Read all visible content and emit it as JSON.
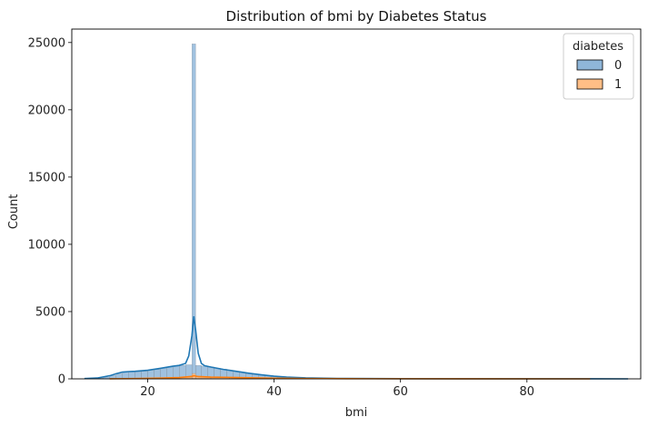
{
  "chart_data": {
    "type": "histogram",
    "title": "Distribution of bmi by Diabetes Status",
    "xlabel": "bmi",
    "ylabel": "Count",
    "xlim": [
      8.0,
      98.0
    ],
    "ylim": [
      0,
      26000
    ],
    "x_ticks": [
      20,
      40,
      60,
      80
    ],
    "y_ticks": [
      0,
      5000,
      10000,
      15000,
      20000,
      25000
    ],
    "grid": false,
    "legend_title": "diabetes",
    "legend_placement": "top-right",
    "series": [
      {
        "name": "0",
        "color": "#1f77b4",
        "fill_color": "#8fb6d9",
        "bins": [
          {
            "x0": 10.0,
            "x1": 11.0,
            "count": 20
          },
          {
            "x0": 11.0,
            "x1": 12.0,
            "count": 40
          },
          {
            "x0": 12.0,
            "x1": 13.0,
            "count": 60
          },
          {
            "x0": 13.0,
            "x1": 14.0,
            "count": 120
          },
          {
            "x0": 14.0,
            "x1": 15.0,
            "count": 250
          },
          {
            "x0": 15.0,
            "x1": 16.0,
            "count": 380
          },
          {
            "x0": 16.0,
            "x1": 17.0,
            "count": 480
          },
          {
            "x0": 17.0,
            "x1": 18.0,
            "count": 520
          },
          {
            "x0": 18.0,
            "x1": 19.0,
            "count": 540
          },
          {
            "x0": 19.0,
            "x1": 20.0,
            "count": 560
          },
          {
            "x0": 20.0,
            "x1": 21.0,
            "count": 620
          },
          {
            "x0": 21.0,
            "x1": 22.0,
            "count": 700
          },
          {
            "x0": 22.0,
            "x1": 23.0,
            "count": 800
          },
          {
            "x0": 23.0,
            "x1": 24.0,
            "count": 880
          },
          {
            "x0": 24.0,
            "x1": 25.0,
            "count": 950
          },
          {
            "x0": 25.0,
            "x1": 26.0,
            "count": 1000
          },
          {
            "x0": 26.0,
            "x1": 27.0,
            "count": 1050
          },
          {
            "x0": 27.0,
            "x1": 27.6,
            "count": 24900
          },
          {
            "x0": 27.6,
            "x1": 28.5,
            "count": 1000
          },
          {
            "x0": 28.5,
            "x1": 29.5,
            "count": 950
          },
          {
            "x0": 29.5,
            "x1": 30.5,
            "count": 880
          },
          {
            "x0": 30.5,
            "x1": 31.5,
            "count": 800
          },
          {
            "x0": 31.5,
            "x1": 32.5,
            "count": 720
          },
          {
            "x0": 32.5,
            "x1": 33.5,
            "count": 640
          },
          {
            "x0": 33.5,
            "x1": 34.5,
            "count": 560
          },
          {
            "x0": 34.5,
            "x1": 35.5,
            "count": 480
          },
          {
            "x0": 35.5,
            "x1": 36.5,
            "count": 400
          },
          {
            "x0": 36.5,
            "x1": 37.5,
            "count": 330
          },
          {
            "x0": 37.5,
            "x1": 38.5,
            "count": 270
          },
          {
            "x0": 38.5,
            "x1": 39.5,
            "count": 220
          },
          {
            "x0": 39.5,
            "x1": 40.5,
            "count": 180
          },
          {
            "x0": 40.5,
            "x1": 42.0,
            "count": 130
          },
          {
            "x0": 42.0,
            "x1": 44.0,
            "count": 90
          },
          {
            "x0": 44.0,
            "x1": 46.0,
            "count": 60
          },
          {
            "x0": 46.0,
            "x1": 50.0,
            "count": 35
          },
          {
            "x0": 50.0,
            "x1": 55.0,
            "count": 20
          },
          {
            "x0": 55.0,
            "x1": 60.0,
            "count": 12
          },
          {
            "x0": 60.0,
            "x1": 70.0,
            "count": 8
          },
          {
            "x0": 70.0,
            "x1": 96.0,
            "count": 3
          }
        ],
        "kde": {
          "x": [
            10,
            12,
            14,
            15,
            16,
            17,
            18,
            20,
            22,
            24,
            25,
            26,
            26.5,
            27.0,
            27.3,
            27.6,
            28.0,
            28.5,
            29,
            30,
            32,
            34,
            36,
            38,
            40,
            42,
            45,
            50,
            60,
            70,
            80,
            90,
            96
          ],
          "y": [
            20,
            60,
            230,
            380,
            500,
            540,
            560,
            640,
            780,
            940,
            1000,
            1150,
            1700,
            3200,
            4650,
            3600,
            1900,
            1150,
            980,
            880,
            700,
            560,
            420,
            300,
            200,
            130,
            70,
            30,
            10,
            5,
            3,
            2,
            1
          ]
        }
      },
      {
        "name": "1",
        "color": "#ff7f0e",
        "fill_color": "#ffbe86",
        "bins": [
          {
            "x0": 14.0,
            "x1": 18.0,
            "count": 8
          },
          {
            "x0": 18.0,
            "x1": 22.0,
            "count": 25
          },
          {
            "x0": 22.0,
            "x1": 25.0,
            "count": 60
          },
          {
            "x0": 25.0,
            "x1": 27.0,
            "count": 110
          },
          {
            "x0": 27.0,
            "x1": 27.6,
            "count": 400
          },
          {
            "x0": 27.6,
            "x1": 30.0,
            "count": 140
          },
          {
            "x0": 30.0,
            "x1": 33.0,
            "count": 120
          },
          {
            "x0": 33.0,
            "x1": 36.0,
            "count": 90
          },
          {
            "x0": 36.0,
            "x1": 40.0,
            "count": 60
          },
          {
            "x0": 40.0,
            "x1": 45.0,
            "count": 30
          },
          {
            "x0": 45.0,
            "x1": 55.0,
            "count": 10
          },
          {
            "x0": 55.0,
            "x1": 70.0,
            "count": 3
          }
        ],
        "kde": {
          "x": [
            14,
            18,
            22,
            25,
            27,
            27.3,
            28,
            30,
            33,
            36,
            40,
            45,
            55,
            70,
            90
          ],
          "y": [
            5,
            20,
            55,
            100,
            180,
            230,
            170,
            130,
            110,
            80,
            50,
            25,
            8,
            2,
            1
          ]
        }
      }
    ]
  }
}
